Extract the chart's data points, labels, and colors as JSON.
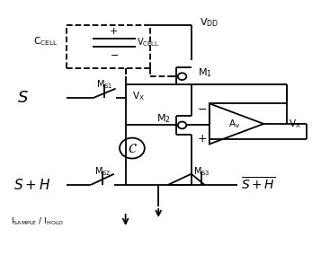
{
  "background_color": "#ffffff",
  "line_color": "#000000",
  "fig_width": 3.67,
  "fig_height": 3.03,
  "dpi": 100
}
